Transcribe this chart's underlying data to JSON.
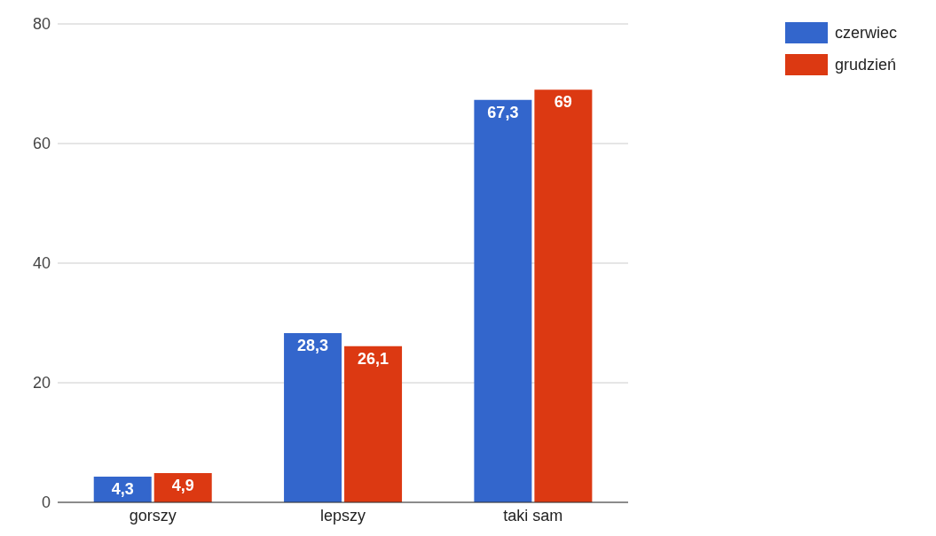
{
  "chart_data": {
    "type": "bar",
    "categories": [
      "gorszy",
      "lepszy",
      "taki sam"
    ],
    "series": [
      {
        "name": "czerwiec",
        "color": "#3366cc",
        "values": [
          4.3,
          28.3,
          67.3
        ],
        "value_labels": [
          "4,3",
          "28,3",
          "67,3"
        ]
      },
      {
        "name": "grudzień",
        "color": "#dc3912",
        "values": [
          4.9,
          26.1,
          69
        ],
        "value_labels": [
          "4,9",
          "26,1",
          "69"
        ]
      }
    ],
    "ylim": [
      0,
      80
    ],
    "yticks": [
      0,
      20,
      40,
      60,
      80
    ],
    "grid": "y",
    "legend": "top right"
  }
}
